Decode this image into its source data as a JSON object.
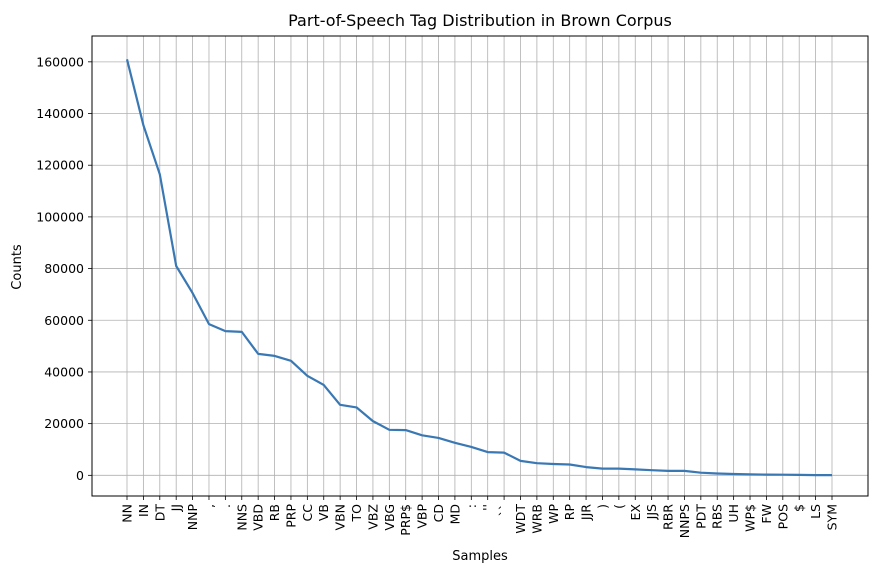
{
  "chart_data": {
    "type": "line",
    "title": "Part-of-Speech Tag Distribution in Brown Corpus",
    "xlabel": "Samples",
    "ylabel": "Counts",
    "ylim": [
      -8000,
      170000
    ],
    "yticks": [
      0,
      20000,
      40000,
      60000,
      80000,
      100000,
      120000,
      140000,
      160000
    ],
    "grid": true,
    "line_color": "#3a78b4",
    "categories": [
      "NN",
      "IN",
      "DT",
      "JJ",
      "NNP",
      ",",
      ".",
      "NNS",
      "VBD",
      "RB",
      "PRP",
      "CC",
      "VB",
      "VBN",
      "TO",
      "VBZ",
      "VBG",
      "PRP$",
      "VBP",
      "CD",
      "MD",
      ":",
      "''",
      "``",
      "WDT",
      "WRB",
      "WP",
      "RP",
      "JJR",
      ")",
      "(",
      "EX",
      "JJS",
      "RBR",
      "NNPS",
      "PDT",
      "RBS",
      "UH",
      "WP$",
      "FW",
      "POS",
      "$",
      "LS",
      "SYM"
    ],
    "values": [
      161000,
      135500,
      116500,
      81000,
      70500,
      58500,
      55800,
      55500,
      47000,
      46200,
      44300,
      38500,
      35000,
      27300,
      26300,
      21000,
      17600,
      17500,
      15500,
      14500,
      12600,
      11000,
      9000,
      8800,
      5600,
      4700,
      4400,
      4200,
      3200,
      2600,
      2600,
      2300,
      2000,
      1700,
      1700,
      1000,
      700,
      500,
      350,
      300,
      250,
      150,
      100,
      80
    ]
  }
}
